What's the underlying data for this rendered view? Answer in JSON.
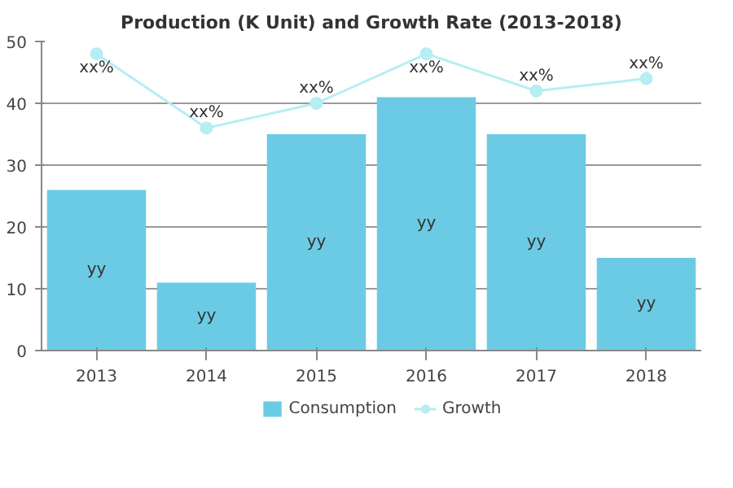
{
  "chart_data": {
    "type": "bar",
    "title": "Production (K Unit) and Growth Rate (2013-2018)",
    "categories": [
      "2013",
      "2014",
      "2015",
      "2016",
      "2017",
      "2018"
    ],
    "series": [
      {
        "name": "Consumption",
        "color": "#6ccbe4",
        "values": [
          26,
          11,
          35,
          41,
          35,
          15
        ],
        "value_labels": [
          "yy",
          "yy",
          "yy",
          "yy",
          "yy",
          "yy"
        ]
      },
      {
        "name": "Growth",
        "type": "line",
        "color": "#b5eef3",
        "marker": "circle",
        "values": [
          48,
          36,
          40,
          48,
          42,
          44
        ],
        "value_labels": [
          "xx%",
          "xx%",
          "xx%",
          "xx%",
          "xx%",
          "xx%"
        ]
      }
    ],
    "ylim": [
      0,
      50
    ],
    "yticks": [
      0,
      10,
      20,
      30,
      40,
      50
    ],
    "grid": "y",
    "legend": "bottom"
  }
}
